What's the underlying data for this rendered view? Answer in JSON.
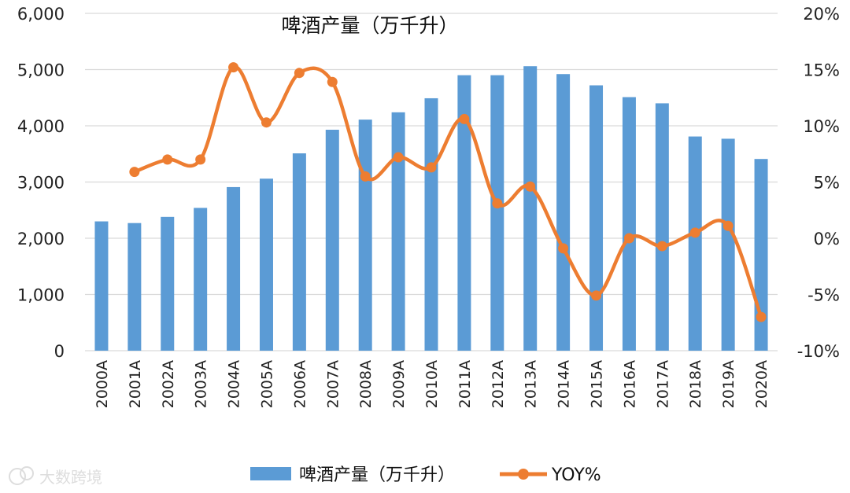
{
  "chart_data": {
    "type": "bar+line",
    "title": "啤酒产量（万千升）",
    "categories": [
      "2000A",
      "2001A",
      "2002A",
      "2003A",
      "2004A",
      "2005A",
      "2006A",
      "2007A",
      "2008A",
      "2009A",
      "2010A",
      "2011A",
      "2012A",
      "2013A",
      "2014A",
      "2015A",
      "2016A",
      "2017A",
      "2018A",
      "2019A",
      "2020A"
    ],
    "series": [
      {
        "name": "啤酒产量（万千升）",
        "type": "bar",
        "axis": "left",
        "color": "#5b9bd5",
        "values": [
          2300,
          2270,
          2380,
          2540,
          2910,
          3060,
          3510,
          3930,
          4110,
          4240,
          4490,
          4900,
          4900,
          5060,
          4920,
          4720,
          4510,
          4400,
          3810,
          3770,
          3410
        ]
      },
      {
        "name": "YOY%",
        "type": "line",
        "axis": "right",
        "color": "#ed7d31",
        "values": [
          null,
          5.9,
          7.0,
          7.0,
          15.2,
          10.3,
          14.7,
          13.9,
          5.5,
          7.2,
          6.3,
          10.6,
          3.1,
          4.6,
          -0.9,
          -5.1,
          0.0,
          -0.7,
          0.5,
          1.1,
          -7.0
        ]
      }
    ],
    "y_left": {
      "min": 0,
      "max": 6000,
      "ticks": [
        "0",
        "1,000",
        "2,000",
        "3,000",
        "4,000",
        "5,000",
        "6,000"
      ]
    },
    "y_right": {
      "min": -10,
      "max": 20,
      "ticks": [
        "-10%",
        "-5%",
        "0%",
        "5%",
        "10%",
        "15%",
        "20%"
      ]
    },
    "legend": {
      "position": "bottom",
      "bar_label": "啤酒产量（万千升）",
      "line_label": "YOY%"
    },
    "grid": true
  },
  "watermark": "大数跨境"
}
